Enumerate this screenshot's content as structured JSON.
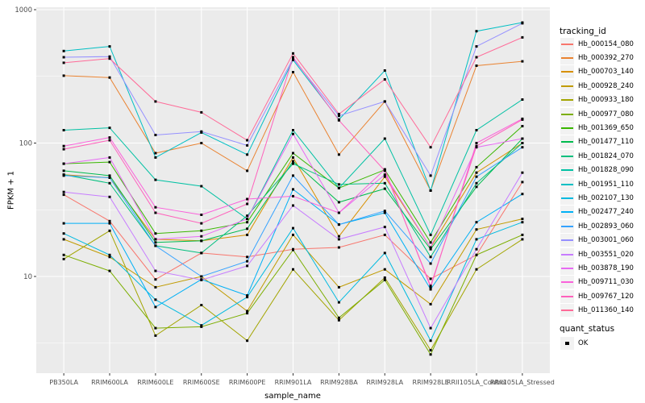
{
  "chart_data": {
    "type": "line",
    "title": "",
    "xlabel": "sample_name",
    "ylabel": "FPKM + 1",
    "y_scale": "log10",
    "ylim": [
      2,
      1000
    ],
    "grid": true,
    "panel_bg": "#EBEBEB",
    "grid_color": "#FFFFFF",
    "axis_text_color": "#4D4D4D",
    "point_color": "#000000",
    "y_ticks": [
      {
        "value": 10,
        "label": "10"
      },
      {
        "value": 100,
        "label": "100"
      },
      {
        "value": 1000,
        "label": "1000"
      }
    ],
    "y_minor_ticks": [
      3.162,
      31.62,
      316.2
    ],
    "categories": [
      "PB350LA",
      "RRIM600LA",
      "RRIM600LE",
      "RRIM600SE",
      "RRIM600PE",
      "RRIM901LA",
      "RRIM928BA",
      "RRIM928LA",
      "RRIM928LE",
      "RRII105LA_Control",
      "RRII105LA_Stressed"
    ],
    "legend": {
      "title": "tracking_id",
      "position": "right"
    },
    "legend2": {
      "title": "quant_status",
      "items": [
        {
          "label": "OK",
          "marker": "filled-black-square"
        }
      ]
    },
    "series": [
      {
        "name": "Hb_000154_080",
        "color": "#F8766D",
        "values": [
          41,
          26,
          9.5,
          15,
          14,
          16,
          16.5,
          20.5,
          9.6,
          14.5,
          51
        ]
      },
      {
        "name": "Hb_000392_270",
        "color": "#EA8331",
        "values": [
          320,
          310,
          84,
          100,
          62,
          340,
          82,
          205,
          44,
          380,
          410
        ]
      },
      {
        "name": "Hb_000703_140",
        "color": "#D89000",
        "values": [
          58,
          55,
          19,
          18.5,
          20.5,
          78,
          20,
          56,
          16.5,
          60,
          100
        ]
      },
      {
        "name": "Hb_000928_240",
        "color": "#C09B00",
        "values": [
          19,
          14,
          8.3,
          10,
          5.5,
          20.5,
          8.3,
          11.3,
          6.2,
          22.5,
          27
        ]
      },
      {
        "name": "Hb_000933_180",
        "color": "#A3A500",
        "values": [
          13.5,
          22,
          3.6,
          6.1,
          3.3,
          11.3,
          4.7,
          9.8,
          2.8,
          11.3,
          19
        ]
      },
      {
        "name": "Hb_000977_080",
        "color": "#7CAE00",
        "values": [
          14.5,
          11,
          4.1,
          4.2,
          5.3,
          15.8,
          4.9,
          9.4,
          2.6,
          14.5,
          20.5
        ]
      },
      {
        "name": "Hb_001369_650",
        "color": "#39B600",
        "values": [
          70,
          72,
          21,
          22,
          25.5,
          84,
          46,
          63,
          18,
          66,
          134
        ]
      },
      {
        "name": "Hb_001477_110",
        "color": "#00BB4E",
        "values": [
          62,
          57,
          18,
          18.5,
          22.8,
          73,
          36,
          45.5,
          16,
          47,
          108
        ]
      },
      {
        "name": "Hb_001824_070",
        "color": "#00BF7D",
        "values": [
          58,
          50,
          17,
          15,
          28.5,
          70,
          49,
          50,
          14,
          50,
          100
        ]
      },
      {
        "name": "Hb_001828_090",
        "color": "#00C1A3",
        "values": [
          125,
          130,
          53,
          47.5,
          27,
          125,
          46,
          108,
          20.5,
          125,
          212
        ]
      },
      {
        "name": "Hb_001951_110",
        "color": "#00BFC4",
        "values": [
          490,
          530,
          78,
          120,
          82,
          420,
          150,
          350,
          44,
          690,
          800
        ]
      },
      {
        "name": "Hb_002107_130",
        "color": "#00BAE0",
        "values": [
          21,
          14.5,
          6.7,
          4.3,
          7,
          23,
          6.4,
          15,
          3.3,
          19,
          25.5
        ]
      },
      {
        "name": "Hb_002477_240",
        "color": "#00B0F6",
        "values": [
          25,
          25,
          5.9,
          9.5,
          7.2,
          45,
          24.5,
          30,
          8,
          25.5,
          41.5
        ]
      },
      {
        "name": "Hb_002893_060",
        "color": "#35A2FF",
        "values": [
          57,
          55,
          17,
          10,
          13,
          57,
          24.5,
          31,
          12.5,
          56,
          93
        ]
      },
      {
        "name": "Hb_003001_060",
        "color": "#9590FF",
        "values": [
          440,
          445,
          115,
          122,
          96,
          430,
          160,
          205,
          57,
          530,
          790
        ]
      },
      {
        "name": "Hb_003551_020",
        "color": "#C77CFF",
        "values": [
          43,
          39.5,
          11,
          9.4,
          12,
          34,
          19,
          23.5,
          4.1,
          16,
          60
        ]
      },
      {
        "name": "Hb_003878_190",
        "color": "#E76BF3",
        "values": [
          70,
          78,
          19,
          20,
          27,
          117,
          30,
          58,
          16.5,
          93,
          108
        ]
      },
      {
        "name": "Hb_009711_030",
        "color": "#FA62DB",
        "values": [
          95,
          110,
          33,
          29,
          38,
          40,
          30,
          63.5,
          8.3,
          100,
          152
        ]
      },
      {
        "name": "Hb_009767_120",
        "color": "#FF62BC",
        "values": [
          90,
          105,
          30,
          25,
          35,
          440,
          148,
          62,
          8.5,
          95,
          150
        ]
      },
      {
        "name": "Hb_011360_140",
        "color": "#FF6A98",
        "values": [
          400,
          430,
          205,
          170,
          105,
          470,
          165,
          300,
          93,
          440,
          620
        ]
      }
    ]
  }
}
